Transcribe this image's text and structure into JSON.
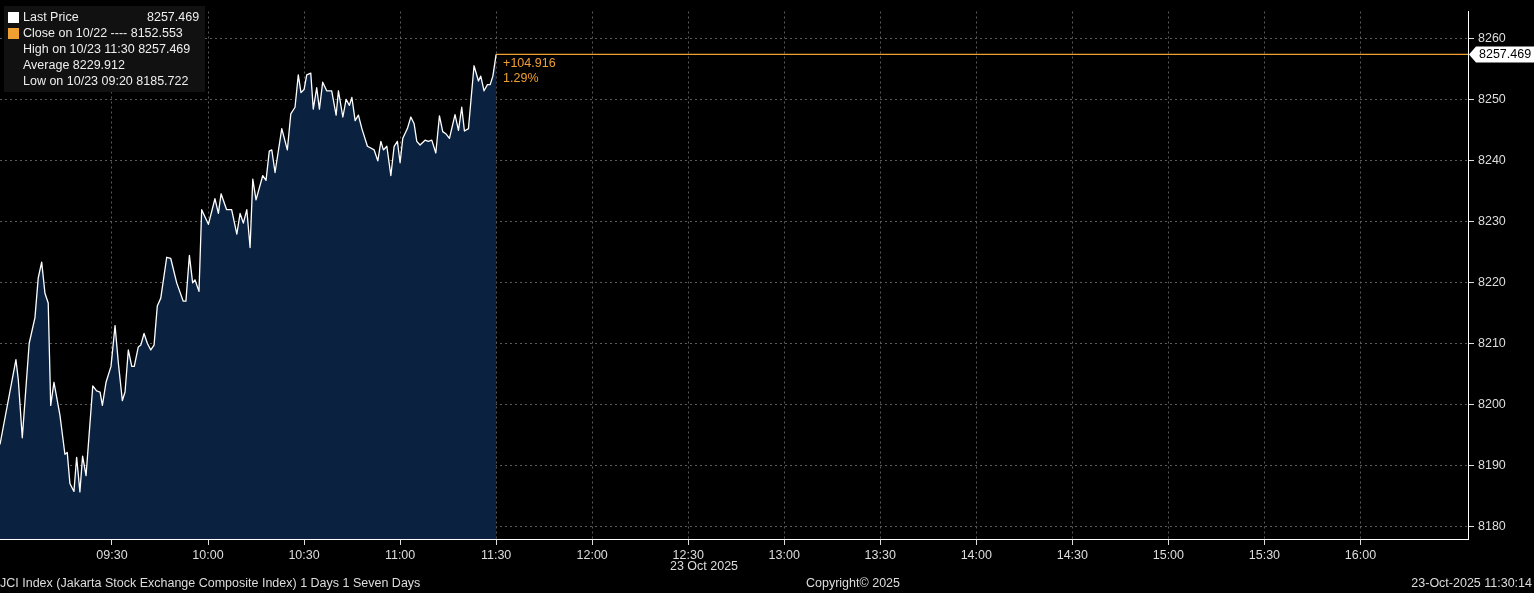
{
  "chart_data": {
    "type": "area",
    "x": [
      8.917,
      9.0,
      9.012,
      9.033,
      9.069,
      9.099,
      9.116,
      9.134,
      9.151,
      9.168,
      9.181,
      9.198,
      9.229,
      9.255,
      9.267,
      9.281,
      9.302,
      9.316,
      9.333,
      9.347,
      9.365,
      9.4,
      9.42,
      9.438,
      9.45,
      9.469,
      9.495,
      9.516,
      9.533,
      9.554,
      9.568,
      9.585,
      9.603,
      9.616,
      9.637,
      9.65,
      9.667,
      9.684,
      9.702,
      9.719,
      9.736,
      9.754,
      9.785,
      9.806,
      9.837,
      9.871,
      9.885,
      9.903,
      9.92,
      9.932,
      9.953,
      9.967,
      10.002,
      10.036,
      10.054,
      10.068,
      10.097,
      10.123,
      10.15,
      10.167,
      10.184,
      10.202,
      10.219,
      10.233,
      10.25,
      10.285,
      10.302,
      10.319,
      10.332,
      10.349,
      10.384,
      10.413,
      10.431,
      10.453,
      10.47,
      10.484,
      10.5,
      10.514,
      10.535,
      10.548,
      10.566,
      10.58,
      10.597,
      10.618,
      10.644,
      10.667,
      10.679,
      10.702,
      10.719,
      10.736,
      10.749,
      10.766,
      10.783,
      10.801,
      10.83,
      10.865,
      10.884,
      10.9,
      10.913,
      10.931,
      10.952,
      10.969,
      10.986,
      11.0,
      11.014,
      11.038,
      11.056,
      11.073,
      11.087,
      11.104,
      11.13,
      11.147,
      11.165,
      11.186,
      11.205,
      11.222,
      11.24,
      11.257,
      11.286,
      11.304,
      11.321,
      11.335,
      11.356,
      11.368,
      11.385,
      11.408,
      11.42,
      11.437,
      11.455,
      11.469,
      11.483,
      11.5
    ],
    "series": [
      {
        "name": "Last Price",
        "color": "#0a2240",
        "values": [
          8193.5,
          8207.4,
          8204.2,
          8194.6,
          8210.1,
          8214.3,
          8220.8,
          8223.4,
          8218.3,
          8216.7,
          8199.9,
          8203.7,
          8198.3,
          8191.9,
          8192.2,
          8187.1,
          8185.8,
          8191.4,
          8185.722,
          8191.6,
          8188.4,
          8203.1,
          8202.3,
          8202.1,
          8199.9,
          8203.7,
          8206.3,
          8213.0,
          8206.9,
          8200.7,
          8202.1,
          8209.0,
          8206.3,
          8206.3,
          8209.5,
          8209.8,
          8211.7,
          8210.1,
          8209.0,
          8209.8,
          8216.2,
          8217.5,
          8224.2,
          8224.0,
          8220.0,
          8217.0,
          8217.0,
          8224.5,
          8220.0,
          8220.5,
          8218.6,
          8232.0,
          8229.6,
          8233.8,
          8231.4,
          8234.6,
          8232.0,
          8232.0,
          8228.0,
          8231.4,
          8229.8,
          8232.0,
          8225.8,
          8237.0,
          8233.6,
          8237.6,
          8236.8,
          8241.6,
          8241.8,
          8238.1,
          8245.3,
          8241.8,
          8247.7,
          8248.8,
          8254.1,
          8251.2,
          8251.7,
          8254.1,
          8254.4,
          8248.5,
          8252.0,
          8248.5,
          8252.9,
          8251.5,
          8251.5,
          8247.5,
          8251.5,
          8247.2,
          8250.1,
          8249.1,
          8250.4,
          8246.6,
          8247.5,
          8245.3,
          8242.4,
          8241.8,
          8240.0,
          8243.2,
          8241.8,
          8242.4,
          8237.6,
          8242.4,
          8243.2,
          8239.7,
          8243.7,
          8245.3,
          8247.2,
          8246.1,
          8243.2,
          8242.6,
          8243.4,
          8243.2,
          8243.4,
          8241.3,
          8247.4,
          8244.8,
          8244.4,
          8243.7,
          8247.6,
          8245.0,
          8248.8,
          8244.9,
          8245.3,
          8249.6,
          8255.6,
          8253.1,
          8253.9,
          8251.5,
          8252.5,
          8252.5,
          8253.9,
          8257.469
        ]
      },
      {
        "type": "line",
        "color": "#f0a030",
        "x": [
          11.5,
          16.56
        ],
        "values": [
          8257.469,
          8257.469
        ]
      }
    ],
    "xlim": [
      8.917,
      16.56
    ],
    "xticks": [
      {
        "value": 9.5,
        "label": "09:30"
      },
      {
        "value": 10,
        "label": "10:00"
      },
      {
        "value": 10.5,
        "label": "10:30"
      },
      {
        "value": 11,
        "label": "11:00"
      },
      {
        "value": 11.5,
        "label": "11:30"
      },
      {
        "value": 12,
        "label": "12:00"
      },
      {
        "value": 12.5,
        "label": "12:30"
      },
      {
        "value": 13,
        "label": "13:00"
      },
      {
        "value": 13.5,
        "label": "13:30"
      },
      {
        "value": 14,
        "label": "14:00"
      },
      {
        "value": 14.5,
        "label": "14:30"
      },
      {
        "value": 15,
        "label": "15:00"
      },
      {
        "value": 15.5,
        "label": "15:30"
      },
      {
        "value": 16,
        "label": "16:00"
      }
    ],
    "ylim": [
      8178,
      8264.5
    ],
    "yticks": [
      8180,
      8190,
      8200,
      8210,
      8220,
      8230,
      8240,
      8250,
      8260
    ],
    "grid": true,
    "legend": "top left",
    "marker": "none",
    "annotations": [
      "8257.469",
      "Close on 10/22 ---- 8152.553",
      "High on 10/23 11:30 8257.469",
      "Average 8229.912",
      "Low on 10/23 09:20 8185.722",
      "+104.916",
      "1.29%",
      "8257.469",
      "23 Oct 2025",
      "JCI Index (Jakarta Stock Exchange Composite Index) 1 Days 1 Seven Days",
      "Copyright© 2025",
      "23-Oct-2025 11:30:14"
    ]
  }
}
